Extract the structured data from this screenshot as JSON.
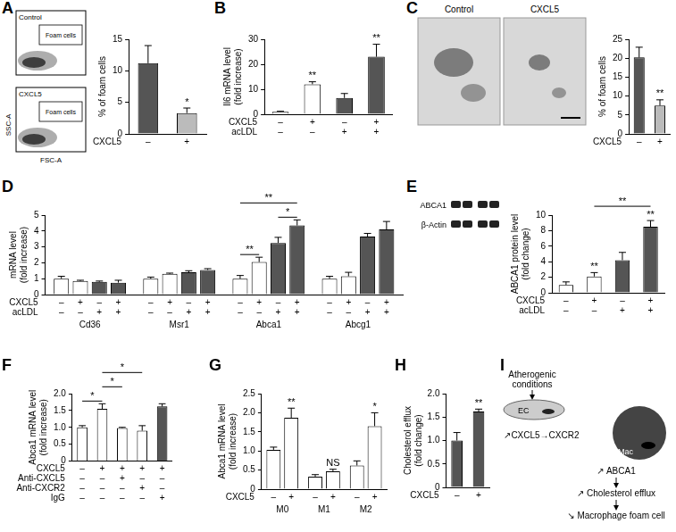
{
  "chart_data": [
    {
      "panel": "A",
      "type": "bar",
      "y_label": "% of foam cells",
      "categories": [
        null,
        null
      ],
      "values": [
        11.2,
        3.3
      ],
      "errors": [
        2.8,
        0.8
      ],
      "colors": [
        "#555555",
        "#bbbbbb"
      ],
      "ylim": [
        0,
        15
      ],
      "yticks": [
        0,
        5,
        10,
        15
      ],
      "grid": false,
      "conditions": [
        {
          "label": "CXCL5",
          "signs": [
            "–",
            "+"
          ]
        }
      ],
      "stars": [
        {
          "bar": 1,
          "label": "*"
        }
      ]
    },
    {
      "panel": "B",
      "type": "bar",
      "y_label": [
        "Il6 mRNA level",
        "(fold increase)"
      ],
      "categories": [
        null,
        null,
        null,
        null
      ],
      "values": [
        1.0,
        12.0,
        6.5,
        23.0
      ],
      "errors": [
        0.2,
        1.0,
        1.8,
        5.0
      ],
      "colors": [
        "#ffffff",
        "#ffffff",
        "#555555",
        "#555555"
      ],
      "ylim": [
        0,
        30
      ],
      "yticks": [
        0,
        10,
        20,
        30
      ],
      "grid": false,
      "conditions": [
        {
          "label": "CXCL5",
          "signs": [
            "–",
            "+",
            "–",
            "+"
          ]
        },
        {
          "label": "acLDL",
          "signs": [
            "–",
            "–",
            "+",
            "+"
          ]
        }
      ],
      "stars": [
        {
          "bar": 1,
          "label": "**"
        },
        {
          "bar": 3,
          "label": "**"
        }
      ]
    },
    {
      "panel": "C",
      "type": "bar",
      "y_label": "% of foam cells",
      "categories": [
        null,
        null
      ],
      "values": [
        20.2,
        7.5
      ],
      "errors": [
        2.7,
        1.5
      ],
      "colors": [
        "#555555",
        "#bbbbbb"
      ],
      "ylim": [
        0,
        25
      ],
      "yticks": [
        0,
        5,
        10,
        15,
        20,
        25
      ],
      "grid": false,
      "conditions": [
        {
          "label": "CXCL5",
          "signs": [
            "–",
            "+"
          ]
        }
      ],
      "stars": [
        {
          "bar": 1,
          "label": "**"
        }
      ]
    },
    {
      "panel": "D",
      "type": "bar",
      "y_label": [
        "mRNA level",
        "(fold increase)"
      ],
      "categories": [
        "Cd36",
        "Msr1",
        "Abca1",
        "Abcg1"
      ],
      "series": [
        {
          "color": "#ffffff",
          "values": [
            1.0,
            1.0,
            1.0,
            1.0
          ],
          "errors": [
            0.15,
            0.1,
            0.2,
            0.15
          ]
        },
        {
          "color": "#ffffff",
          "values": [
            0.85,
            1.3,
            2.05,
            1.15
          ],
          "errors": [
            0.05,
            0.05,
            0.3,
            0.25
          ]
        },
        {
          "color": "#555555",
          "values": [
            0.8,
            1.4,
            3.25,
            3.65
          ],
          "errors": [
            0.05,
            0.1,
            0.35,
            0.2
          ]
        },
        {
          "color": "#555555",
          "values": [
            0.75,
            1.55,
            4.35,
            4.1
          ],
          "errors": [
            0.15,
            0.08,
            0.35,
            0.5
          ]
        }
      ],
      "ylim": [
        0,
        5
      ],
      "yticks": [
        0,
        1,
        2,
        3,
        4,
        5
      ],
      "grid": false,
      "conditions": [
        {
          "label": "CXCL5",
          "signs": [
            "–",
            "+",
            "–",
            "+",
            "–",
            "+",
            "–",
            "+",
            "–",
            "+",
            "–",
            "+",
            "–",
            "+",
            "–",
            "+"
          ]
        },
        {
          "label": "acLDL",
          "signs": [
            "–",
            "–",
            "+",
            "+",
            "–",
            "–",
            "+",
            "+",
            "–",
            "–",
            "+",
            "+",
            "–",
            "–",
            "+",
            "+"
          ]
        }
      ],
      "brackets": [
        {
          "from": 8,
          "to": 9,
          "label": "**"
        },
        {
          "from": 8,
          "to": 11,
          "label": "**"
        },
        {
          "from": 10,
          "to": 11,
          "label": "*"
        }
      ]
    },
    {
      "panel": "E",
      "type": "bar",
      "y_label": [
        "ABCA1 protein level",
        "(fold change)"
      ],
      "categories": [
        null,
        null,
        null,
        null
      ],
      "values": [
        1.0,
        2.1,
        4.2,
        8.5
      ],
      "errors": [
        0.4,
        0.5,
        1.0,
        0.8
      ],
      "colors": [
        "#ffffff",
        "#ffffff",
        "#555555",
        "#555555"
      ],
      "ylim": [
        0,
        10
      ],
      "yticks": [
        0,
        2,
        4,
        6,
        8,
        10
      ],
      "grid": false,
      "conditions": [
        {
          "label": "CXCL5",
          "signs": [
            "–",
            "+",
            "–",
            "+"
          ]
        },
        {
          "label": "acLDL",
          "signs": [
            "–",
            "–",
            "+",
            "+"
          ]
        }
      ],
      "stars": [
        {
          "bar": 1,
          "label": "**"
        },
        {
          "bar": 3,
          "label": "**"
        }
      ],
      "brackets": [
        {
          "from": 1,
          "to": 3,
          "label": "**"
        }
      ]
    },
    {
      "panel": "F",
      "type": "bar",
      "y_label": [
        "Abca1 mRNA level",
        "(fold increase)"
      ],
      "categories": [
        null,
        null,
        null,
        null,
        null
      ],
      "values": [
        1.0,
        1.55,
        0.98,
        0.9,
        1.62
      ],
      "errors": [
        0.05,
        0.15,
        0.02,
        0.15,
        0.08
      ],
      "colors": [
        "#ffffff",
        "#ffffff",
        "#ffffff",
        "#ffffff",
        "#555555"
      ],
      "ylim": [
        0,
        2
      ],
      "yticks": [
        0,
        0.5,
        {
          "value": 1,
          "label": "1.0"
        },
        1.5,
        {
          "value": 2,
          "label": "2.0"
        }
      ],
      "grid": false,
      "conditions": [
        {
          "label": "CXCL5",
          "signs": [
            "–",
            "+",
            "+",
            "+",
            "+"
          ]
        },
        {
          "label": "Anti-CXCL5",
          "signs": [
            "–",
            "–",
            "+",
            "–",
            "–"
          ]
        },
        {
          "label": "Anti-CXCR2",
          "signs": [
            "–",
            "–",
            "–",
            "+",
            "–"
          ]
        },
        {
          "label": "IgG",
          "signs": [
            "–",
            "–",
            "–",
            "–",
            "+"
          ]
        }
      ],
      "brackets": [
        {
          "from": 0,
          "to": 1,
          "label": "*"
        },
        {
          "from": 1,
          "to": 2,
          "label": "*"
        },
        {
          "from": 1,
          "to": 3,
          "label": "*"
        }
      ]
    },
    {
      "panel": "G",
      "type": "bar",
      "y_label": [
        "Abca1 mRNA level",
        "(fold increase)"
      ],
      "categories": [
        "M0",
        "M1",
        "M2"
      ],
      "series": [
        {
          "color": "#ffffff",
          "values": [
            1.03,
            0.33,
            0.62
          ],
          "errors": [
            0.07,
            0.05,
            0.12
          ]
        },
        {
          "color": "#ffffff",
          "values": [
            1.87,
            0.47,
            1.65
          ],
          "errors": [
            0.25,
            0.05,
            0.35
          ]
        }
      ],
      "ylim": [
        0,
        2.5
      ],
      "yticks": [
        0,
        0.5,
        {
          "value": 1,
          "label": "1.0"
        },
        1.5,
        {
          "value": 2,
          "label": "2.0"
        },
        2.5
      ],
      "grid": false,
      "conditions": [
        {
          "label": "CXCL5",
          "signs": [
            "–",
            "+",
            "–",
            "+",
            "–",
            "+"
          ]
        }
      ],
      "stars": [
        {
          "bar": 1,
          "label": "**"
        },
        {
          "bar": 3,
          "label": "NS"
        },
        {
          "bar": 5,
          "label": "*"
        }
      ]
    },
    {
      "panel": "H",
      "type": "bar",
      "y_label": [
        "Cholesterol efflux",
        "(fold change)"
      ],
      "categories": [
        null,
        null
      ],
      "values": [
        1.0,
        1.62
      ],
      "errors": [
        0.17,
        0.05
      ],
      "colors": [
        "#555555",
        "#555555"
      ],
      "ylim": [
        0,
        2
      ],
      "yticks": [
        0,
        0.5,
        {
          "value": 1,
          "label": "1.0"
        },
        1.5,
        {
          "value": 2,
          "label": "2.0"
        }
      ],
      "grid": false,
      "conditions": [
        {
          "label": "CXCL5",
          "signs": [
            "–",
            "+"
          ]
        }
      ],
      "stars": [
        {
          "bar": 1,
          "label": "**"
        }
      ]
    }
  ],
  "flow_plots": {
    "plots": [
      {
        "title": "Control",
        "gate": "Foam cells"
      },
      {
        "title": "CXCL5",
        "gate": "Foam cells"
      }
    ],
    "x_label": "FSC-A",
    "y_label": "SSC-A"
  },
  "micrographs": {
    "titles": [
      "Control",
      "CXCL5"
    ]
  },
  "blot": {
    "rows": [
      "ABCA1",
      "β-Actin"
    ]
  },
  "diagram": {
    "panel": "I",
    "stimulus": [
      "Atherogenic",
      "conditions"
    ],
    "cell_1": "EC",
    "signal": "↗CXCL5→CXCR2",
    "cell_2": "Mac",
    "steps": [
      "↗ ABCA1",
      "↗ Cholesterol efflux",
      "↘ Macrophage foam cell"
    ]
  }
}
